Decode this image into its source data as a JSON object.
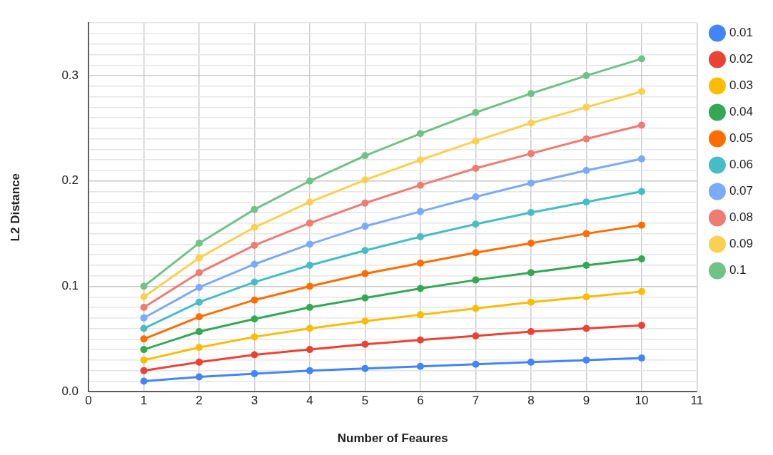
{
  "chart_data": {
    "type": "line",
    "xlabel": "Number of Feaures",
    "ylabel": "L2 Distance",
    "x": [
      1,
      2,
      3,
      4,
      5,
      6,
      7,
      8,
      9,
      10
    ],
    "xlim": [
      0,
      11
    ],
    "xticks": [
      0,
      1,
      2,
      3,
      4,
      5,
      6,
      7,
      8,
      9,
      10,
      11
    ],
    "ylim": [
      0,
      0.35
    ],
    "yticks": [
      {
        "value": 0,
        "label": "0.0"
      },
      {
        "value": 0.01,
        "label": null
      },
      {
        "value": 0.02,
        "label": null
      },
      {
        "value": 0.03,
        "label": null
      },
      {
        "value": 0.04,
        "label": null
      },
      {
        "value": 0.05,
        "label": null
      },
      {
        "value": 0.06,
        "label": null
      },
      {
        "value": 0.07,
        "label": null
      },
      {
        "value": 0.08,
        "label": null
      },
      {
        "value": 0.09,
        "label": null
      },
      {
        "value": 0.1,
        "label": "0.1"
      },
      {
        "value": 0.11,
        "label": null
      },
      {
        "value": 0.12,
        "label": null
      },
      {
        "value": 0.13,
        "label": null
      },
      {
        "value": 0.14,
        "label": null
      },
      {
        "value": 0.15,
        "label": null
      },
      {
        "value": 0.16,
        "label": null
      },
      {
        "value": 0.17,
        "label": null
      },
      {
        "value": 0.18,
        "label": null
      },
      {
        "value": 0.19,
        "label": null
      },
      {
        "value": 0.2,
        "label": "0.2"
      },
      {
        "value": 0.21,
        "label": null
      },
      {
        "value": 0.22,
        "label": null
      },
      {
        "value": 0.23,
        "label": null
      },
      {
        "value": 0.24,
        "label": null
      },
      {
        "value": 0.25,
        "label": null
      },
      {
        "value": 0.26,
        "label": null
      },
      {
        "value": 0.27,
        "label": null
      },
      {
        "value": 0.28,
        "label": null
      },
      {
        "value": 0.29,
        "label": null
      },
      {
        "value": 0.3,
        "label": "0.3"
      },
      {
        "value": 0.31,
        "label": null
      },
      {
        "value": 0.32,
        "label": null
      },
      {
        "value": 0.33,
        "label": null
      },
      {
        "value": 0.34,
        "label": null
      },
      {
        "value": 0.35,
        "label": null
      }
    ],
    "grid": true,
    "legend": "right",
    "marker": "circle",
    "line_style": "solid",
    "series": [
      {
        "name": "0.01",
        "color": "#4285f4",
        "values": [
          0.01,
          0.014,
          0.017,
          0.02,
          0.022,
          0.024,
          0.026,
          0.028,
          0.03,
          0.032
        ]
      },
      {
        "name": "0.02",
        "color": "#ea4335",
        "values": [
          0.02,
          0.028,
          0.035,
          0.04,
          0.045,
          0.049,
          0.053,
          0.057,
          0.06,
          0.063
        ]
      },
      {
        "name": "0.03",
        "color": "#fbbc04",
        "values": [
          0.03,
          0.042,
          0.052,
          0.06,
          0.067,
          0.073,
          0.079,
          0.085,
          0.09,
          0.095
        ]
      },
      {
        "name": "0.04",
        "color": "#34a853",
        "values": [
          0.04,
          0.057,
          0.069,
          0.08,
          0.089,
          0.098,
          0.106,
          0.113,
          0.12,
          0.126
        ]
      },
      {
        "name": "0.05",
        "color": "#ff6d01",
        "values": [
          0.05,
          0.071,
          0.087,
          0.1,
          0.112,
          0.122,
          0.132,
          0.141,
          0.15,
          0.158
        ]
      },
      {
        "name": "0.06",
        "color": "#46bdc6",
        "values": [
          0.06,
          0.085,
          0.104,
          0.12,
          0.134,
          0.147,
          0.159,
          0.17,
          0.18,
          0.19
        ]
      },
      {
        "name": "0.07",
        "color": "#7baaf7",
        "values": [
          0.07,
          0.099,
          0.121,
          0.14,
          0.157,
          0.171,
          0.185,
          0.198,
          0.21,
          0.221
        ]
      },
      {
        "name": "0.08",
        "color": "#f07b72",
        "values": [
          0.08,
          0.113,
          0.139,
          0.16,
          0.179,
          0.196,
          0.212,
          0.226,
          0.24,
          0.253
        ]
      },
      {
        "name": "0.09",
        "color": "#fcd04f",
        "values": [
          0.09,
          0.127,
          0.156,
          0.18,
          0.201,
          0.22,
          0.238,
          0.255,
          0.27,
          0.285
        ]
      },
      {
        "name": "0.1",
        "color": "#71c287",
        "values": [
          0.1,
          0.141,
          0.173,
          0.2,
          0.224,
          0.245,
          0.265,
          0.283,
          0.3,
          0.316
        ]
      }
    ]
  }
}
